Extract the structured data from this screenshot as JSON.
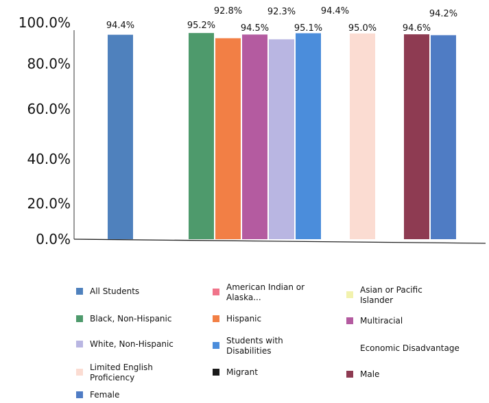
{
  "chart_data": {
    "type": "bar",
    "ylim": [
      0,
      100
    ],
    "y_ticks": [
      "0.0%",
      "20.0%",
      "40.0%",
      "60.0%",
      "80.0%",
      "100.0%"
    ],
    "grid": false,
    "legend_position": "bottom",
    "series": [
      {
        "name": "All Students",
        "value": 94.4,
        "label": "94.4%",
        "color": "#4F81BD"
      },
      {
        "name": "American Indian or Alaska...",
        "value": null,
        "label": "",
        "color": "#F0748A"
      },
      {
        "name": "Asian or Pacific Islander",
        "value": null,
        "label": "",
        "color": "#F2F2AE"
      },
      {
        "name": "Black, Non-Hispanic",
        "value": 95.2,
        "label": "95.2%",
        "color": "#4E9A6C"
      },
      {
        "name": "Hispanic",
        "value": 92.8,
        "label": "92.8%",
        "color": "#F27F45"
      },
      {
        "name": "Multiracial",
        "value": 94.5,
        "label": "94.5%",
        "color": "#B45BA0"
      },
      {
        "name": "White, Non-Hispanic",
        "value": 92.3,
        "label": "92.3%",
        "color": "#B9B6E2"
      },
      {
        "name": "Students with Disabilities",
        "value": 95.1,
        "label": "95.1%",
        "color": "#4B8DDB"
      },
      {
        "name": "Economic Disadvantage",
        "value": 94.4,
        "label": "94.4%",
        "color": "#FFFFFF"
      },
      {
        "name": "Limited English Proficiency",
        "value": 95.0,
        "label": "95.0%",
        "color": "#FBDCD2"
      },
      {
        "name": "Migrant",
        "value": null,
        "label": "",
        "color": "#1A1A1A"
      },
      {
        "name": "Male",
        "value": 94.6,
        "label": "94.6%",
        "color": "#8E3B52"
      },
      {
        "name": "Female",
        "value": 94.2,
        "label": "94.2%",
        "color": "#4F7CC4"
      }
    ]
  }
}
